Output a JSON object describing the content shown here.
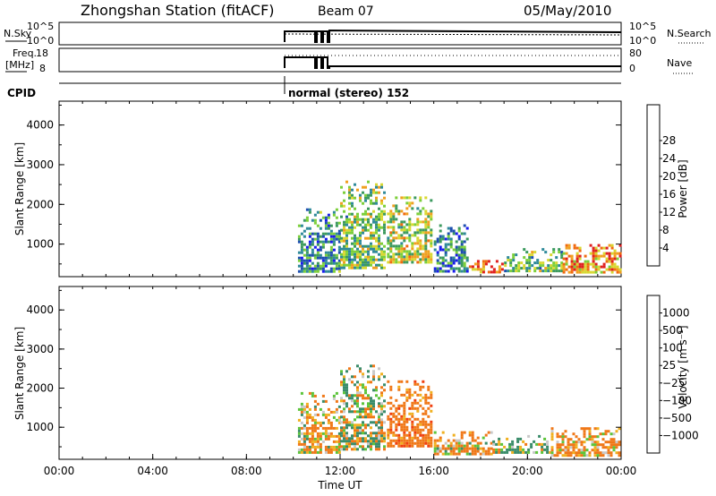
{
  "header": {
    "station": "Zhongshan Station (fitACF)",
    "beam": "Beam 07",
    "date": "05/May/2010"
  },
  "housekeeping": {
    "nsky_label": "N.Sky",
    "nsky_ticks": [
      "10^5",
      "10^0"
    ],
    "nsearch_label": "N.Search",
    "nsearch_ticks": [
      "10^5",
      "10^0"
    ],
    "freq_label_1": "Freq.",
    "freq_label_2": "[MHz]",
    "freq_ticks": [
      "18",
      "8"
    ],
    "nave_label": "Nave",
    "nave_ticks": [
      "80",
      "0"
    ],
    "cpid_label": "CPID",
    "cpid_text": "normal (stereo) 152"
  },
  "colors": {
    "power_scale": [
      "#1a1aee",
      "#1e4fb0",
      "#2f8a9a",
      "#3c9a5e",
      "#7ccf3a",
      "#d8d832",
      "#f0a020",
      "#f06a10",
      "#e02020"
    ],
    "velocity_scale": [
      "#2a3cc0",
      "#2f64b4",
      "#3a8c6a",
      "#5cc43a",
      "#c8c8c8",
      "#f0b020",
      "#f07818",
      "#f04010",
      "#e01818"
    ]
  },
  "chart_data": [
    {
      "type": "heatmap",
      "panel": "power",
      "ylabel": "Slant Range [km]",
      "yticks": [
        "1000",
        "2000",
        "3000",
        "4000"
      ],
      "ylim": [
        180,
        4600
      ],
      "colorbar_label": "Power [dB]",
      "colorbar_ticks": [
        "4",
        "8",
        "12",
        "16",
        "20",
        "24",
        "28"
      ],
      "colorbar_range": [
        0,
        32
      ],
      "regions": [
        {
          "t0": 10.2,
          "t1": 12.0,
          "r0": 300,
          "r1": 1900,
          "value": 10
        },
        {
          "t0": 12.0,
          "t1": 14.0,
          "r0": 400,
          "r1": 2600,
          "value": 15
        },
        {
          "t0": 14.0,
          "t1": 16.0,
          "r0": 500,
          "r1": 2200,
          "value": 18
        },
        {
          "t0": 16.0,
          "t1": 17.5,
          "r0": 300,
          "r1": 1500,
          "value": 8
        },
        {
          "t0": 17.5,
          "t1": 19.0,
          "r0": 250,
          "r1": 600,
          "value": 26
        },
        {
          "t0": 19.0,
          "t1": 21.5,
          "r0": 300,
          "r1": 900,
          "value": 14
        },
        {
          "t0": 21.5,
          "t1": 24.0,
          "r0": 250,
          "r1": 1000,
          "value": 24
        }
      ]
    },
    {
      "type": "heatmap",
      "panel": "velocity",
      "xlabel": "Time UT",
      "ylabel": "Slant Range [km]",
      "yticks": [
        "1000",
        "2000",
        "3000",
        "4000"
      ],
      "ylim": [
        180,
        4600
      ],
      "xticks": [
        "00:00",
        "04:00",
        "08:00",
        "12:00",
        "16:00",
        "20:00",
        "00:00"
      ],
      "xlim": [
        0,
        24
      ],
      "colorbar_label": "Velocity [m s⁻¹]",
      "colorbar_ticks": [
        "1000",
        "500",
        "100",
        "25",
        "−25",
        "−100",
        "−500",
        "−1000"
      ],
      "regions": [
        {
          "t0": 10.2,
          "t1": 12.0,
          "r0": 300,
          "r1": 1900,
          "value": -100
        },
        {
          "t0": 12.0,
          "t1": 14.0,
          "r0": 400,
          "r1": 2600,
          "value": 0
        },
        {
          "t0": 14.0,
          "t1": 16.0,
          "r0": 500,
          "r1": 2200,
          "value": -300
        },
        {
          "t0": 16.0,
          "t1": 18.5,
          "r0": 300,
          "r1": 900,
          "value": -100
        },
        {
          "t0": 18.5,
          "t1": 21.0,
          "r0": 300,
          "r1": 800,
          "value": 80
        },
        {
          "t0": 21.0,
          "t1": 24.0,
          "r0": 250,
          "r1": 1000,
          "value": -150
        }
      ]
    }
  ]
}
